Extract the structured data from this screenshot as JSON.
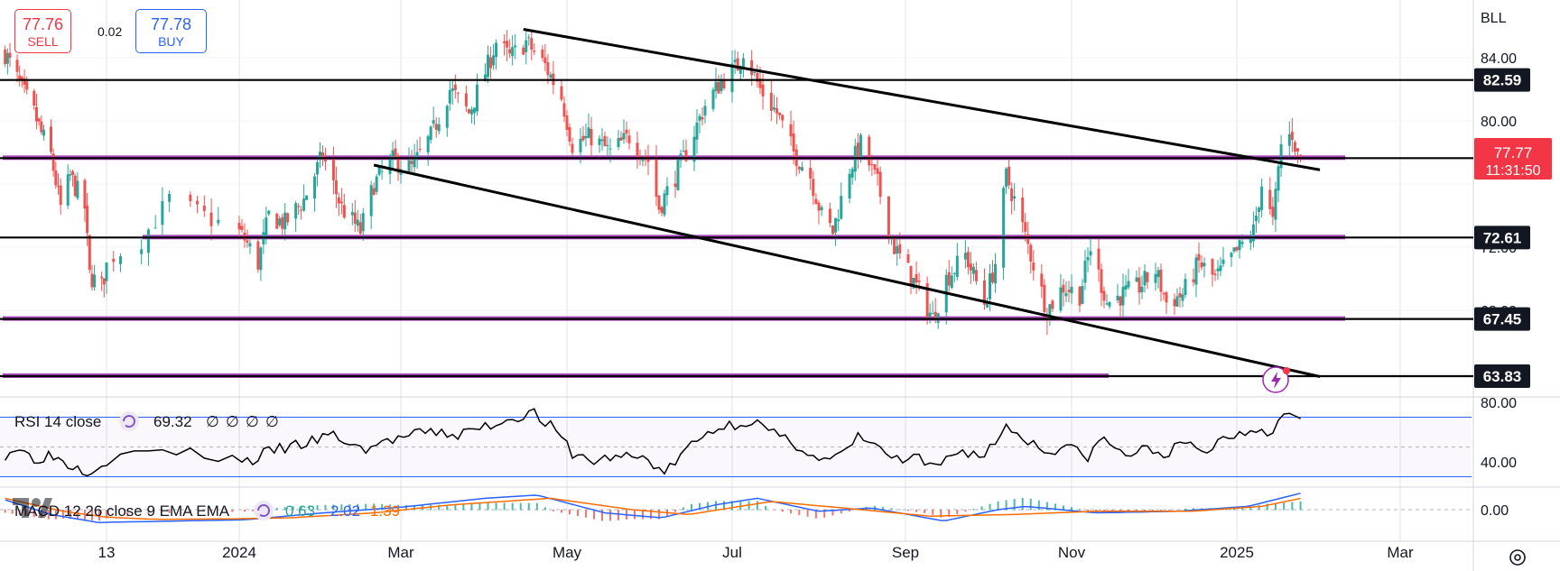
{
  "toolbar": {
    "sell_price": "77.76",
    "sell_label": "SELL",
    "spread": "0.02",
    "buy_price": "77.78",
    "buy_label": "BUY"
  },
  "symbol_label": "BLL",
  "colors": {
    "up": "#26a69a",
    "down": "#ef5350",
    "trendline": "#000000",
    "zone": "#9c27b0",
    "rsi_band": "#2962ff",
    "macd_line": "#2962ff",
    "signal_line": "#ff6d00",
    "current_price_bg": "#f23645"
  },
  "chart_data": [
    {
      "type": "candlestick",
      "title": "",
      "x_ticks": [
        "13",
        "2024",
        "Mar",
        "May",
        "Jul",
        "Sep",
        "Nov",
        "2025",
        "Mar"
      ],
      "y_ticks": [
        "84.00",
        "80.00",
        "72.00",
        "68.00"
      ],
      "ylim": [
        61.9,
        85.6
      ],
      "grid": true,
      "price_levels": [
        {
          "label": "82.59",
          "value": 82.59
        },
        {
          "label": "77.64",
          "value": 77.64
        },
        {
          "label": "72.61",
          "value": 72.61
        },
        {
          "label": "67.45",
          "value": 67.45
        },
        {
          "label": "63.83",
          "value": 63.83
        }
      ],
      "current_price": {
        "value": 77.77,
        "label": "77.77",
        "countdown": "11:31:50"
      },
      "zones": [
        72.61,
        77.64,
        67.45,
        63.83
      ],
      "channel": {
        "upper": [
          [
            "2024-04-15",
            85.8
          ],
          [
            "2025-01-31",
            76.9
          ]
        ],
        "lower": [
          [
            "2024-02-20",
            77.2
          ],
          [
            "2025-01-31",
            63.8
          ]
        ]
      },
      "close_path": [
        [
          "2023-11-01",
          84.3
        ],
        [
          "2023-11-08",
          82.0
        ],
        [
          "2023-11-13",
          80.5
        ],
        [
          "2023-11-16",
          79.2
        ],
        [
          "2023-11-20",
          77.8
        ],
        [
          "2023-11-24",
          74.5
        ],
        [
          "2023-11-28",
          76.5
        ],
        [
          "2023-12-04",
          74.5
        ],
        [
          "2023-12-06",
          70.2
        ],
        [
          "2023-12-11",
          69.5
        ],
        [
          "2023-12-14",
          71.5
        ],
        [
          "2023-12-18",
          72.5
        ],
        [
          "2023-12-22",
          75.0
        ],
        [
          "2024-01-03",
          72.5
        ],
        [
          "2024-01-08",
          71.0
        ],
        [
          "2024-01-12",
          74.0
        ],
        [
          "2024-01-18",
          73.5
        ],
        [
          "2024-01-25",
          75.0
        ],
        [
          "2024-02-01",
          77.8
        ],
        [
          "2024-02-08",
          74.5
        ],
        [
          "2024-02-15",
          73.0
        ],
        [
          "2024-02-20",
          76.0
        ],
        [
          "2024-02-27",
          77.5
        ],
        [
          "2024-03-05",
          77.0
        ],
        [
          "2024-03-12",
          79.0
        ],
        [
          "2024-03-19",
          82.0
        ],
        [
          "2024-03-26",
          80.5
        ],
        [
          "2024-04-02",
          83.5
        ],
        [
          "2024-04-05",
          85.0
        ],
        [
          "2024-04-10",
          84.0
        ],
        [
          "2024-04-16",
          85.0
        ],
        [
          "2024-04-23",
          83.5
        ],
        [
          "2024-04-29",
          81.5
        ],
        [
          "2024-05-03",
          78.5
        ],
        [
          "2024-05-10",
          79.0
        ],
        [
          "2024-05-17",
          78.0
        ],
        [
          "2024-05-24",
          79.0
        ],
        [
          "2024-05-31",
          77.5
        ],
        [
          "2024-06-04",
          74.5
        ],
        [
          "2024-06-10",
          76.5
        ],
        [
          "2024-06-14",
          78.0
        ],
        [
          "2024-06-21",
          81.0
        ],
        [
          "2024-06-27",
          82.5
        ],
        [
          "2024-07-03",
          83.5
        ],
        [
          "2024-07-05",
          84.5
        ],
        [
          "2024-07-11",
          82.0
        ],
        [
          "2024-07-17",
          80.5
        ],
        [
          "2024-07-23",
          78.0
        ],
        [
          "2024-07-29",
          76.5
        ],
        [
          "2024-08-02",
          74.0
        ],
        [
          "2024-08-06",
          73.0
        ],
        [
          "2024-08-12",
          77.0
        ],
        [
          "2024-08-16",
          78.5
        ],
        [
          "2024-08-22",
          76.0
        ],
        [
          "2024-08-28",
          72.0
        ],
        [
          "2024-09-05",
          69.5
        ],
        [
          "2024-09-11",
          67.5
        ],
        [
          "2024-09-16",
          70.0
        ],
        [
          "2024-09-23",
          71.5
        ],
        [
          "2024-09-30",
          68.5
        ],
        [
          "2024-10-04",
          71.0
        ],
        [
          "2024-10-08",
          76.5
        ],
        [
          "2024-10-11",
          75.0
        ],
        [
          "2024-10-17",
          71.5
        ],
        [
          "2024-10-23",
          68.0
        ],
        [
          "2024-10-29",
          69.5
        ],
        [
          "2024-11-04",
          69.0
        ],
        [
          "2024-11-08",
          72.0
        ],
        [
          "2024-11-14",
          68.5
        ],
        [
          "2024-11-20",
          69.0
        ],
        [
          "2024-11-26",
          69.5
        ],
        [
          "2024-12-02",
          70.5
        ],
        [
          "2024-12-06",
          68.5
        ],
        [
          "2024-12-12",
          69.0
        ],
        [
          "2024-12-18",
          71.0
        ],
        [
          "2024-12-24",
          70.0
        ],
        [
          "2024-12-31",
          71.5
        ],
        [
          "2025-01-07",
          73.0
        ],
        [
          "2025-01-10",
          76.0
        ],
        [
          "2025-01-14",
          73.5
        ],
        [
          "2025-01-17",
          78.5
        ],
        [
          "2025-01-21",
          79.2
        ],
        [
          "2025-01-23",
          77.8
        ],
        [
          "2025-01-24",
          77.77
        ]
      ]
    },
    {
      "type": "line",
      "name": "RSI 14 close",
      "label": "RSI 14 close",
      "value_label": "69.32",
      "placeholders": [
        "∅",
        "∅",
        "∅",
        "∅"
      ],
      "y_ticks": [
        "80.00",
        "40.00"
      ],
      "ylim": [
        15,
        85
      ],
      "bands": [
        70,
        30
      ],
      "midline": 50,
      "points": [
        [
          "2023-11-01",
          45
        ],
        [
          "2023-11-06",
          50
        ],
        [
          "2023-11-13",
          42
        ],
        [
          "2023-11-20",
          45
        ],
        [
          "2023-11-28",
          38
        ],
        [
          "2023-12-06",
          34
        ],
        [
          "2023-12-14",
          42
        ],
        [
          "2023-12-20",
          48
        ],
        [
          "2024-01-05",
          40
        ],
        [
          "2024-01-12",
          47
        ],
        [
          "2024-01-25",
          52
        ],
        [
          "2024-02-05",
          58
        ],
        [
          "2024-02-15",
          48
        ],
        [
          "2024-02-27",
          55
        ],
        [
          "2024-03-12",
          60
        ],
        [
          "2024-03-22",
          58
        ],
        [
          "2024-04-05",
          66
        ],
        [
          "2024-04-12",
          70
        ],
        [
          "2024-04-18",
          74
        ],
        [
          "2024-04-26",
          62
        ],
        [
          "2024-05-03",
          46
        ],
        [
          "2024-05-10",
          40
        ],
        [
          "2024-05-20",
          44
        ],
        [
          "2024-05-31",
          42
        ],
        [
          "2024-06-06",
          32
        ],
        [
          "2024-06-14",
          48
        ],
        [
          "2024-06-24",
          62
        ],
        [
          "2024-07-03",
          66
        ],
        [
          "2024-07-08",
          68
        ],
        [
          "2024-07-18",
          56
        ],
        [
          "2024-07-26",
          50
        ],
        [
          "2024-08-02",
          40
        ],
        [
          "2024-08-09",
          44
        ],
        [
          "2024-08-16",
          58
        ],
        [
          "2024-08-23",
          48
        ],
        [
          "2024-08-30",
          40
        ],
        [
          "2024-09-06",
          42
        ],
        [
          "2024-09-11",
          34
        ],
        [
          "2024-09-20",
          48
        ],
        [
          "2024-09-30",
          44
        ],
        [
          "2024-10-08",
          64
        ],
        [
          "2024-10-15",
          56
        ],
        [
          "2024-10-23",
          46
        ],
        [
          "2024-10-30",
          52
        ],
        [
          "2024-11-06",
          42
        ],
        [
          "2024-11-13",
          56
        ],
        [
          "2024-11-20",
          44
        ],
        [
          "2024-11-27",
          48
        ],
        [
          "2024-12-06",
          46
        ],
        [
          "2024-12-13",
          52
        ],
        [
          "2024-12-20",
          46
        ],
        [
          "2024-12-27",
          56
        ],
        [
          "2025-01-03",
          60
        ],
        [
          "2025-01-10",
          64
        ],
        [
          "2025-01-14",
          58
        ],
        [
          "2025-01-17",
          72
        ],
        [
          "2025-01-21",
          76
        ],
        [
          "2025-01-24",
          69.32
        ]
      ]
    },
    {
      "type": "line",
      "name": "MACD 12 26 close 9 EMA EMA",
      "label": "MACD 12 26 close 9 EMA EMA",
      "values_label": [
        "0.63",
        "2.02",
        "1.39"
      ],
      "y_ticks": [
        "0.00"
      ],
      "ylim": [
        -3.2,
        3.2
      ],
      "macd": [
        [
          "2023-11-01",
          1.2
        ],
        [
          "2023-11-20",
          -0.6
        ],
        [
          "2023-12-10",
          -1.6
        ],
        [
          "2024-01-05",
          -1.2
        ],
        [
          "2024-02-01",
          -0.4
        ],
        [
          "2024-03-01",
          0.3
        ],
        [
          "2024-04-01",
          1.4
        ],
        [
          "2024-04-20",
          1.8
        ],
        [
          "2024-05-15",
          -0.4
        ],
        [
          "2024-06-05",
          -1.0
        ],
        [
          "2024-06-25",
          0.6
        ],
        [
          "2024-07-10",
          1.4
        ],
        [
          "2024-08-01",
          -0.2
        ],
        [
          "2024-08-20",
          0.2
        ],
        [
          "2024-09-15",
          -1.4
        ],
        [
          "2024-10-05",
          0.0
        ],
        [
          "2024-10-15",
          0.4
        ],
        [
          "2024-11-10",
          -0.4
        ],
        [
          "2024-12-10",
          -0.2
        ],
        [
          "2025-01-05",
          0.4
        ],
        [
          "2025-01-24",
          2.02
        ]
      ],
      "signal": [
        [
          "2023-11-01",
          1.4
        ],
        [
          "2023-11-25",
          -0.2
        ],
        [
          "2023-12-20",
          -1.2
        ],
        [
          "2024-01-20",
          -1.0
        ],
        [
          "2024-02-20",
          -0.4
        ],
        [
          "2024-03-20",
          0.6
        ],
        [
          "2024-04-25",
          1.4
        ],
        [
          "2024-05-25",
          0.0
        ],
        [
          "2024-06-15",
          -0.6
        ],
        [
          "2024-07-15",
          1.0
        ],
        [
          "2024-08-10",
          0.2
        ],
        [
          "2024-09-10",
          -0.8
        ],
        [
          "2024-10-10",
          -0.6
        ],
        [
          "2024-11-10",
          -0.2
        ],
        [
          "2024-12-15",
          -0.2
        ],
        [
          "2025-01-10",
          0.4
        ],
        [
          "2025-01-24",
          1.39
        ]
      ]
    }
  ]
}
